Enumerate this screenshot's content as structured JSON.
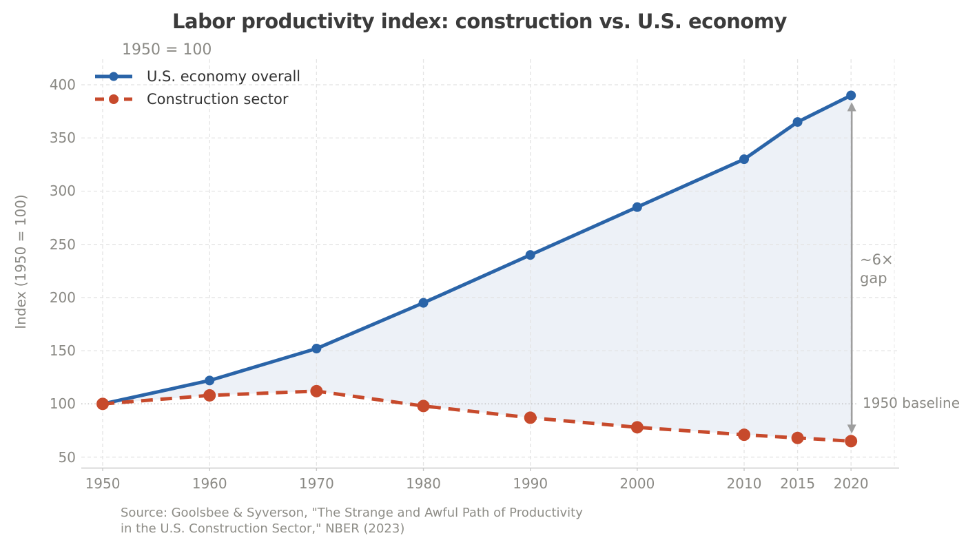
{
  "chart_data": {
    "type": "line",
    "title": "Labor productivity index: construction vs. U.S. economy",
    "subtitle": "1950 = 100",
    "ylabel": "Index (1950 = 100)",
    "xlabel": "",
    "x": [
      1950,
      1960,
      1970,
      1980,
      1990,
      2000,
      2010,
      2015,
      2020
    ],
    "x_tick_labels": [
      "1950",
      "1960",
      "1970",
      "1980",
      "1990",
      "2000",
      "2010",
      "2015",
      "2020"
    ],
    "y_ticks": [
      50,
      100,
      150,
      200,
      250,
      300,
      350,
      400
    ],
    "xlim": [
      1948,
      2024.5
    ],
    "ylim": [
      40,
      424
    ],
    "grid": true,
    "legend_position": "upper-left",
    "series": [
      {
        "name": "U.S. economy overall",
        "color": "#2a64a8",
        "style": "solid",
        "values": [
          100,
          122,
          152,
          195,
          240,
          285,
          330,
          365,
          390
        ]
      },
      {
        "name": "Construction sector",
        "color": "#c74a2c",
        "style": "dashed",
        "values": [
          100,
          108,
          112,
          98,
          87,
          78,
          71,
          68,
          65
        ]
      }
    ],
    "fill_between_color": "#edf1f7",
    "baseline_value": 100,
    "annotations": {
      "gap_label": "~6×\ngap",
      "baseline_label": "1950 baseline",
      "gap_arrow_x": 2020
    },
    "colors": {
      "grid": "#e4e4e4",
      "baseline_dotted": "#b9b9b9",
      "spine": "#c9c9c9",
      "arrow": "#9e9e9e",
      "tick_text": "#8a8984",
      "title_text": "#3b3b3b"
    }
  },
  "footer": {
    "line1": "Source: Goolsbee & Syverson, \"The Strange and Awful Path of Productivity",
    "line2": "in the U.S. Construction Sector,\" NBER (2023)"
  }
}
